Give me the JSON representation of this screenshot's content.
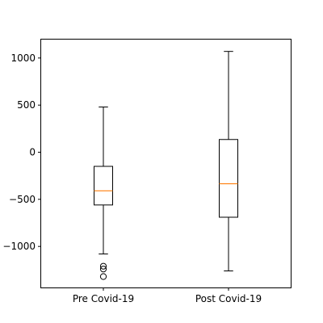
{
  "chart_data": {
    "type": "box",
    "title": "",
    "xlabel": "",
    "ylabel": "",
    "categories": [
      "Pre Covid-19",
      "Post Covid-19"
    ],
    "ylim": [
      -1440,
      1200
    ],
    "yticks": [
      1000,
      500,
      0,
      -500,
      -1000
    ],
    "ytick_labels": [
      "1000",
      "500",
      "0",
      "−500",
      "−1000"
    ],
    "grid": false,
    "boxes": [
      {
        "name": "Pre Covid-19",
        "whisker_low": -1080,
        "q1": -560,
        "median": -410,
        "q3": -150,
        "whisker_high": 480,
        "outliers": [
          -1210,
          -1240,
          -1320
        ]
      },
      {
        "name": "Post Covid-19",
        "whisker_low": -1260,
        "q1": -690,
        "median": -335,
        "q3": 135,
        "whisker_high": 1070,
        "outliers": []
      }
    ],
    "colors": {
      "box": "#000000",
      "median": "#ff7f0e",
      "axis": "#000000",
      "background": "#ffffff"
    }
  }
}
